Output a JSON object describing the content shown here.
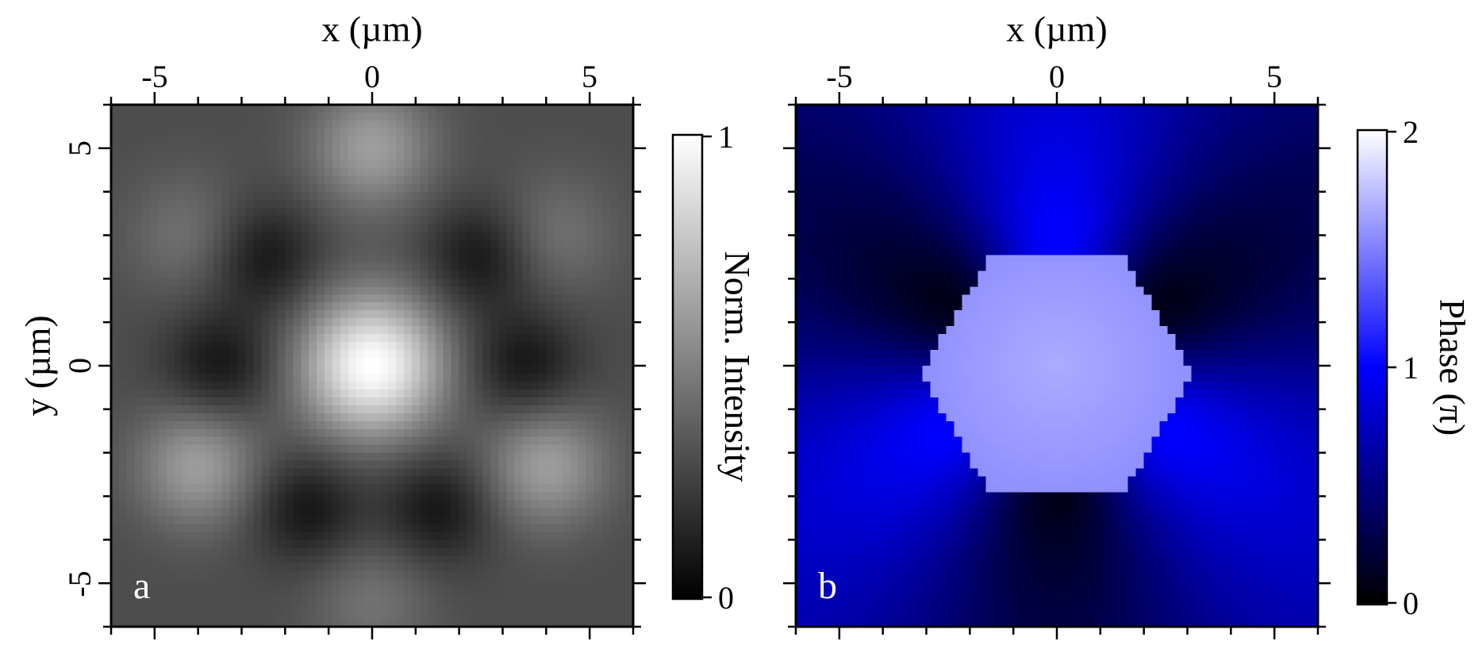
{
  "chart_data": [
    {
      "type": "heatmap",
      "panel_label": "a",
      "xlabel": "x (µm)",
      "ylabel": "y (µm)",
      "xlim": [
        -6,
        6
      ],
      "ylim": [
        -6,
        6
      ],
      "x_ticks": [
        -5,
        0,
        5
      ],
      "y_ticks": [
        -5,
        0,
        5
      ],
      "x_tick_labels": [
        "-5",
        "0",
        "5"
      ],
      "y_tick_labels": [
        "-5",
        "0",
        "5"
      ],
      "colorbar": {
        "label": "Norm. Intensity",
        "range": [
          0,
          1
        ],
        "ticks": [
          0,
          1
        ],
        "tick_labels": [
          "0",
          "1"
        ],
        "colormap": "grayscale",
        "colors": [
          "#000000",
          "#ffffff"
        ]
      },
      "description_features": {
        "central_peak": {
          "x": 0,
          "y": 0,
          "value": 1.0
        },
        "outer_peaks": [
          {
            "x": 0,
            "y": 5,
            "value": 0.62
          },
          {
            "x": 4.0,
            "y": -2.3,
            "value": 0.62
          },
          {
            "x": -4.0,
            "y": -2.3,
            "value": 0.62
          },
          {
            "x": -4.2,
            "y": 3.0,
            "value": 0.45
          },
          {
            "x": 4.2,
            "y": 3.0,
            "value": 0.45
          },
          {
            "x": 0,
            "y": -5.4,
            "value": 0.45
          }
        ],
        "dark_ring_positions": [
          {
            "x": -2.5,
            "y": 2.5
          },
          {
            "x": 2.5,
            "y": 2.5
          },
          {
            "x": -3.5,
            "y": 0
          },
          {
            "x": 3.5,
            "y": 0
          },
          {
            "x": -1.5,
            "y": -3.3
          },
          {
            "x": 1.5,
            "y": -3.3
          }
        ],
        "background_value": 0.3
      }
    },
    {
      "type": "heatmap",
      "panel_label": "b",
      "xlabel": "x (µm)",
      "ylabel": "",
      "xlim": [
        -6,
        6
      ],
      "ylim": [
        -6,
        6
      ],
      "x_ticks": [
        -5,
        0,
        5
      ],
      "y_ticks": [
        -5,
        0,
        5
      ],
      "x_tick_labels": [
        "-5",
        "0",
        "5"
      ],
      "colorbar": {
        "label": "Phase (π)",
        "range": [
          0,
          2
        ],
        "ticks": [
          0,
          1,
          2
        ],
        "tick_labels": [
          "0",
          "1",
          "2"
        ],
        "colormap": "black-blue-white",
        "colors": [
          "#000000",
          "#0000ff",
          "#ffffff"
        ]
      },
      "description_features": {
        "inner_hexagon_phase": 1.55,
        "outer_region_phase": "azimuthal",
        "hexagon_radius_um": 3.3
      }
    }
  ]
}
